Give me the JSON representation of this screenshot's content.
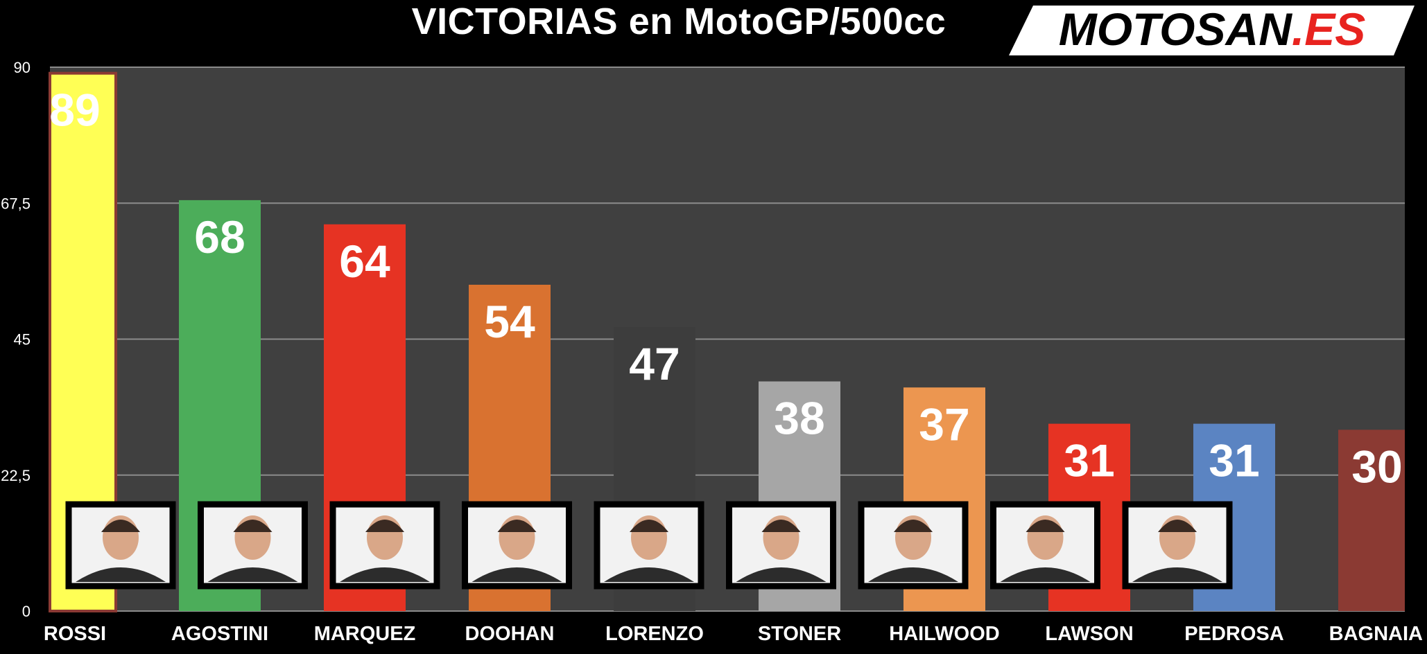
{
  "brand": {
    "logo_text": "MOTOSAN",
    "logo_suffix": ".ES",
    "logo_color": "#000000",
    "logo_suffix_color": "#e8231f"
  },
  "chart_data": {
    "type": "bar",
    "title": "VICTORIAS en MotoGP/500cc",
    "xlabel": "",
    "ylabel": "",
    "ylim": [
      0,
      90
    ],
    "yticks": [
      0,
      22.5,
      45,
      67.5,
      90
    ],
    "ytick_labels": [
      "0",
      "22,5",
      "45",
      "67,5",
      "90"
    ],
    "grid": true,
    "legend": "none",
    "categories": [
      "ROSSI",
      "AGOSTINI",
      "MARQUEZ",
      "DOOHAN",
      "LORENZO",
      "STONER",
      "HAILWOOD",
      "LAWSON",
      "PEDROSA",
      "BAGNAIA"
    ],
    "values": [
      89,
      68,
      64,
      54,
      47,
      38,
      37,
      31,
      31,
      30
    ],
    "colors": [
      "#ffff55",
      "#4cad5a",
      "#e63323",
      "#d97230",
      "#3d3d3d",
      "#a6a6a6",
      "#ec9650",
      "#e63323",
      "#5b84c2",
      "#8b3a33"
    ],
    "rider_photos": [
      "ROSSI",
      "AGOSTINI",
      "MARQUEZ",
      "DOOHAN",
      "LORENZO",
      "STONER",
      "HAILWOOD",
      "LAWSON",
      "PEDROSA"
    ]
  }
}
